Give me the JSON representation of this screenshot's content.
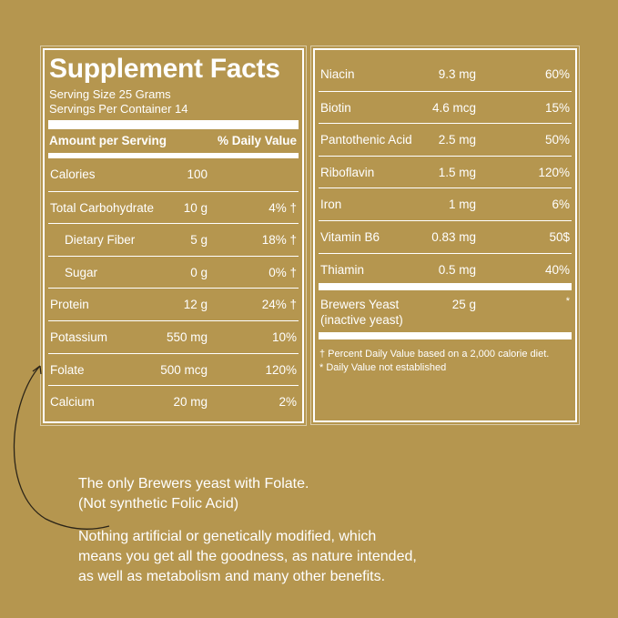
{
  "title": "Supplement Facts",
  "serving_size": "Serving Size 25 Grams",
  "servings_per_container": "Servings Per Container 14",
  "header": {
    "amount": "Amount per Serving",
    "dv": "% Daily Value"
  },
  "left_rows": [
    {
      "name": "Calories",
      "amount": "100",
      "dv": ""
    },
    {
      "name": "Total Carbohydrate",
      "amount": "10 g",
      "dv": "4% †"
    },
    {
      "name": "Dietary Fiber",
      "amount": "5 g",
      "dv": "18% †"
    },
    {
      "name": "Sugar",
      "amount": "0 g",
      "dv": "0% †"
    },
    {
      "name": "Protein",
      "amount": "12 g",
      "dv": "24% †"
    },
    {
      "name": "Potassium",
      "amount": "550 mg",
      "dv": "10%"
    },
    {
      "name": "Folate",
      "amount": "500 mcg",
      "dv": "120%"
    },
    {
      "name": "Calcium",
      "amount": "20 mg",
      "dv": "2%"
    }
  ],
  "right_rows": [
    {
      "name": "Niacin",
      "amount": "9.3 mg",
      "dv": "60%"
    },
    {
      "name": "Biotin",
      "amount": "4.6 mcg",
      "dv": "15%"
    },
    {
      "name": "Pantothenic Acid",
      "amount": "2.5 mg",
      "dv": "50%"
    },
    {
      "name": "Riboflavin",
      "amount": "1.5 mg",
      "dv": "120%"
    },
    {
      "name": "Iron",
      "amount": "1 mg",
      "dv": "6%"
    },
    {
      "name": "Vitamin B6",
      "amount": "0.83 mg",
      "dv": "50$"
    },
    {
      "name": "Thiamin",
      "amount": "0.5 mg",
      "dv": "40%"
    }
  ],
  "yeast": {
    "name1": "Brewers Yeast",
    "name2": "(inactive yeast)",
    "amount": "25 g",
    "dv": "*"
  },
  "footnotes": [
    "† Percent Daily Value based on a 2,000 calorie diet.",
    "* Daily Value not established"
  ],
  "callout": [
    "The only Brewers yeast with Folate.",
    "(Not synthetic Folic Acid)"
  ],
  "body_text": [
    "Nothing artificial or genetically modified, which",
    "means you get all the goodness, as nature intended,",
    "as well as metabolism and many other benefits."
  ],
  "colors": {
    "background": "#b5964f",
    "text": "#ffffff"
  }
}
